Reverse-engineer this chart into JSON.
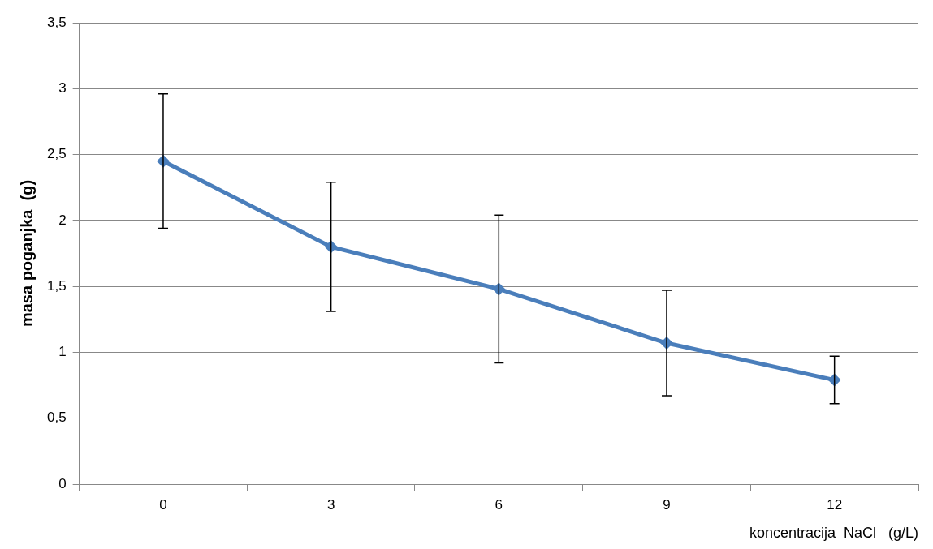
{
  "chart_data": {
    "type": "line",
    "xlabel": "koncentracija  NaCl   (g/L)",
    "ylabel": "masa poganjka  (g)",
    "categories": [
      "0",
      "3",
      "6",
      "9",
      "12"
    ],
    "series": [
      {
        "color": "#4a7ebb",
        "values": [
          2.45,
          1.8,
          1.48,
          1.07,
          0.79
        ],
        "errors": [
          0.51,
          0.49,
          0.56,
          0.4,
          0.18
        ]
      }
    ],
    "ylim": [
      0,
      3.5
    ],
    "yticks": [
      0,
      {
        "value": 0.5,
        "label": "0,5"
      },
      1,
      {
        "value": 1.5,
        "label": "1,5"
      },
      2,
      {
        "value": 2.5,
        "label": "2,5"
      },
      3,
      {
        "value": 3.5,
        "label": "3,5"
      }
    ],
    "grid": "y",
    "legend": false,
    "marker": "diamond",
    "line_style": "solid"
  }
}
